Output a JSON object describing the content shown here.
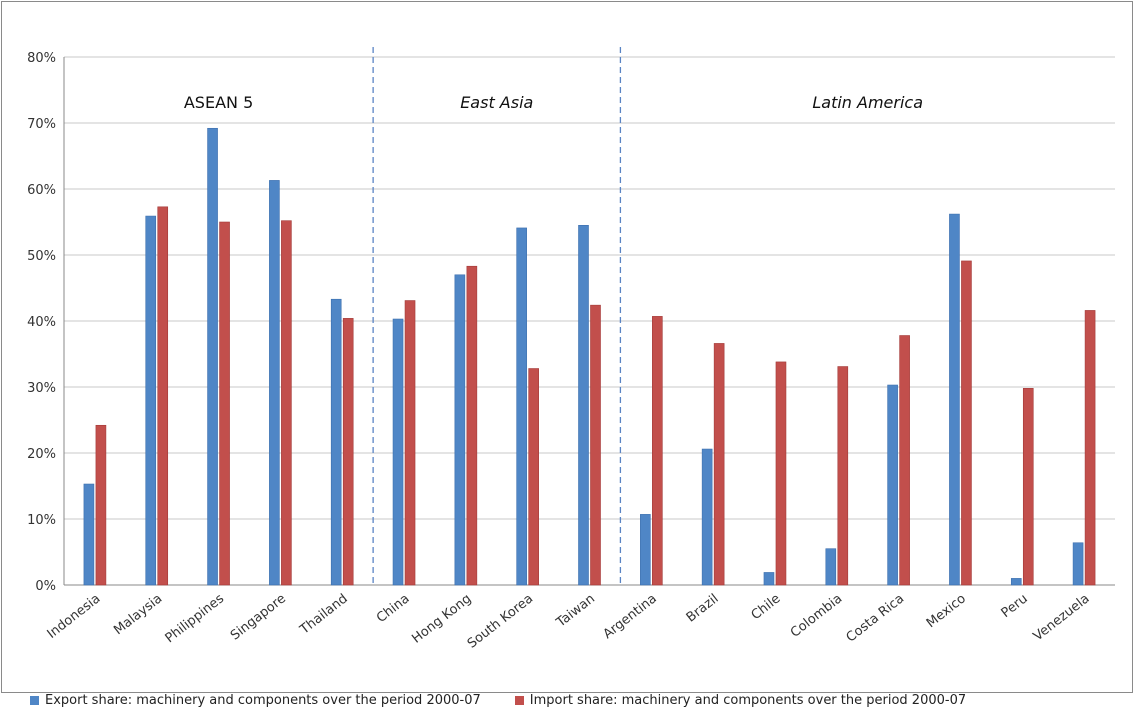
{
  "chart_data": {
    "type": "bar",
    "categories": [
      "Indonesia",
      "Malaysia",
      "Philippines",
      "Singapore",
      "Thailand",
      "China",
      "Hong Kong",
      "South Korea",
      "Taiwan",
      "Argentina",
      "Brazil",
      "Chile",
      "Colombia",
      "Costa Rica",
      "Mexico",
      "Peru",
      "Venezuela"
    ],
    "series": [
      {
        "name": "Export share: machinery and components over the period 2000-07",
        "color": "#4f86c6",
        "values": [
          15.3,
          55.9,
          69.2,
          61.3,
          43.3,
          40.3,
          47.0,
          54.1,
          54.5,
          10.7,
          20.6,
          1.9,
          5.5,
          30.3,
          56.2,
          1.0,
          6.4
        ]
      },
      {
        "name": "Import share: machinery and components over the period 2000-07",
        "color": "#c24f4c",
        "values": [
          24.2,
          57.3,
          55.0,
          55.2,
          40.4,
          43.1,
          48.3,
          32.8,
          42.4,
          40.7,
          36.6,
          33.8,
          33.1,
          37.8,
          49.1,
          29.8,
          41.6
        ]
      }
    ],
    "yticks": [
      "0%",
      "10%",
      "20%",
      "30%",
      "40%",
      "50%",
      "60%",
      "70%",
      "80%"
    ],
    "ylim": [
      0,
      80
    ],
    "grid": true,
    "legend_position": "bottom",
    "regions": [
      {
        "label": "ASEAN 5",
        "start": 0,
        "end": 4,
        "italic": false
      },
      {
        "label": "East Asia",
        "start": 5,
        "end": 8,
        "italic": true
      },
      {
        "label": "Latin America",
        "start": 9,
        "end": 16,
        "italic": true
      }
    ]
  }
}
